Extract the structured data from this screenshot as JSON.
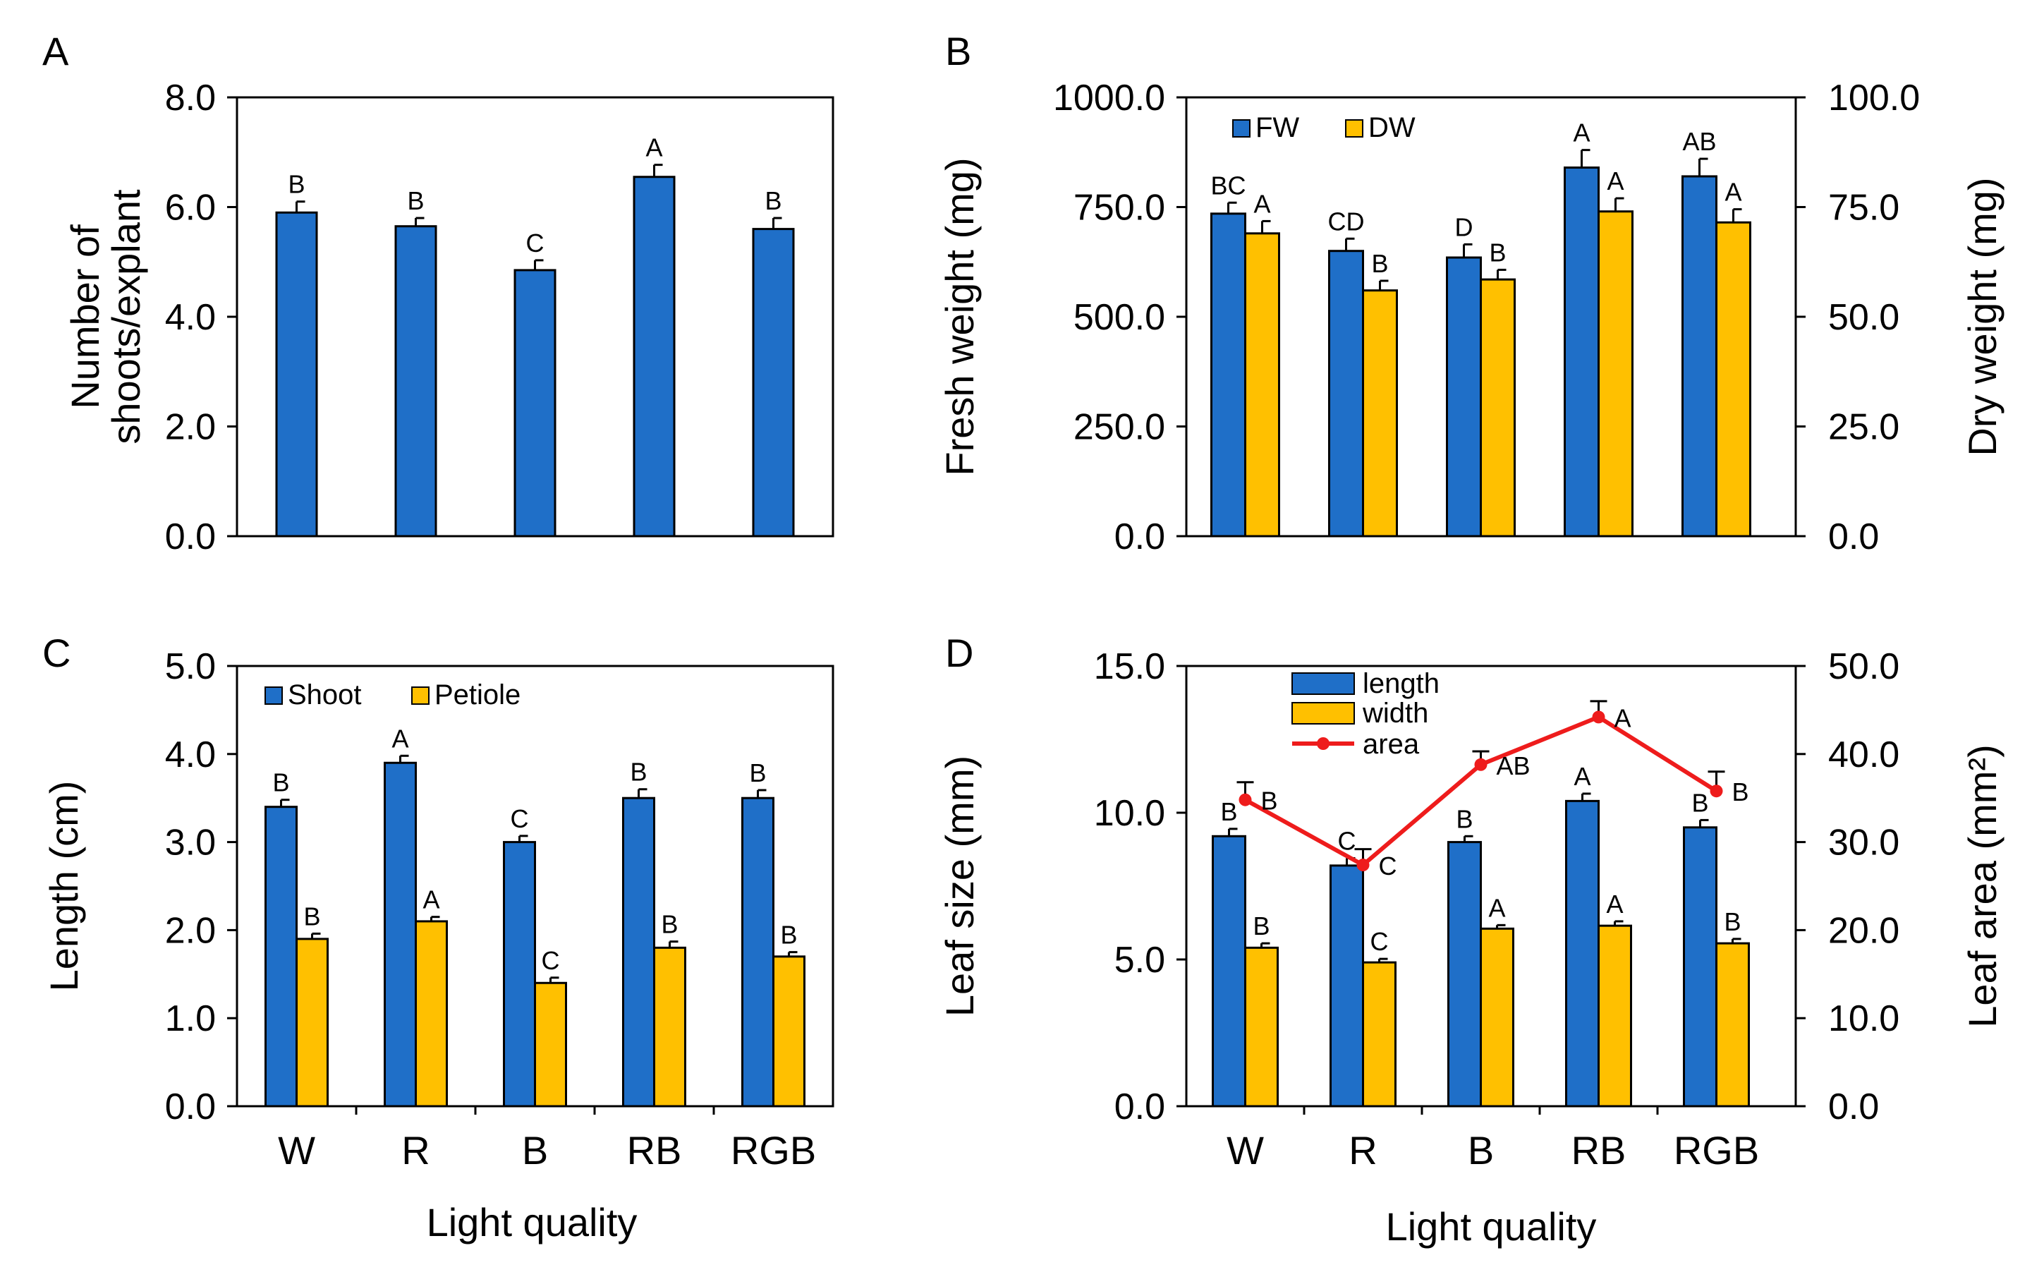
{
  "x_categories": [
    "W",
    "R",
    "B",
    "RB",
    "RGB"
  ],
  "x_axis_title": "Light quality",
  "colors": {
    "blue": "#1f6fc8",
    "yellow": "#ffc000",
    "red": "#ee1c1c"
  },
  "chart_data": [
    {
      "panel": "A",
      "type": "bar",
      "categories": [
        "W",
        "R",
        "B",
        "RB",
        "RGB"
      ],
      "ylabel_lines": [
        "Number of",
        "shoots/explant"
      ],
      "ylim": [
        0,
        8
      ],
      "yticks": [
        0,
        2,
        4,
        6,
        8
      ],
      "ytick_labels": [
        "0.0",
        "2.0",
        "4.0",
        "6.0",
        "8.0"
      ],
      "series": [
        {
          "name": "Shoots",
          "color": "#1f6fc8",
          "values": [
            5.9,
            5.65,
            4.85,
            6.55,
            5.6
          ],
          "errors": [
            0.2,
            0.15,
            0.18,
            0.22,
            0.2
          ],
          "letters": [
            "B",
            "B",
            "C",
            "A",
            "B"
          ]
        }
      ]
    },
    {
      "panel": "B",
      "type": "bar",
      "categories": [
        "W",
        "R",
        "B",
        "RB",
        "RGB"
      ],
      "ylabel": "Fresh weight (mg)",
      "ylabel_right": "Dry weight (mg)",
      "ylim": [
        0,
        1000
      ],
      "yticks": [
        0,
        250,
        500,
        750,
        1000
      ],
      "ytick_labels": [
        "0.0",
        "250.0",
        "500.0",
        "750.0",
        "1000.0"
      ],
      "ylim_right": [
        0,
        100
      ],
      "yticks_right": [
        0,
        25,
        50,
        75,
        100
      ],
      "ytick_labels_right": [
        "0.0",
        "25.0",
        "50.0",
        "75.0",
        "100.0"
      ],
      "legend": [
        "FW",
        "DW"
      ],
      "series": [
        {
          "name": "FW",
          "axis": "left",
          "color": "#1f6fc8",
          "values": [
            735,
            650,
            635,
            840,
            820
          ],
          "errors": [
            25,
            28,
            30,
            40,
            40
          ],
          "letters": [
            "BC",
            "CD",
            "D",
            "A",
            "AB"
          ]
        },
        {
          "name": "DW",
          "axis": "right",
          "color": "#ffc000",
          "values": [
            69,
            56,
            58.5,
            74,
            71.5
          ],
          "errors": [
            2.8,
            2.2,
            2.2,
            3.0,
            3.0
          ],
          "letters": [
            "A",
            "B",
            "B",
            "A",
            "A"
          ]
        }
      ]
    },
    {
      "panel": "C",
      "type": "bar",
      "categories": [
        "W",
        "R",
        "B",
        "RB",
        "RGB"
      ],
      "ylabel": "Length (cm)",
      "ylim": [
        0,
        5
      ],
      "yticks": [
        0,
        1,
        2,
        3,
        4,
        5
      ],
      "ytick_labels": [
        "0.0",
        "1.0",
        "2.0",
        "3.0",
        "4.0",
        "5.0"
      ],
      "legend": [
        "Shoot",
        "Petiole"
      ],
      "series": [
        {
          "name": "Shoot",
          "color": "#1f6fc8",
          "values": [
            3.4,
            3.9,
            3.0,
            3.5,
            3.5
          ],
          "errors": [
            0.08,
            0.08,
            0.07,
            0.1,
            0.09
          ],
          "letters": [
            "B",
            "A",
            "C",
            "B",
            "B"
          ]
        },
        {
          "name": "Petiole",
          "color": "#ffc000",
          "values": [
            1.9,
            2.1,
            1.4,
            1.8,
            1.7
          ],
          "errors": [
            0.06,
            0.05,
            0.06,
            0.07,
            0.05
          ],
          "letters": [
            "B",
            "A",
            "C",
            "B",
            "B"
          ]
        }
      ]
    },
    {
      "panel": "D",
      "type": "bar",
      "categories": [
        "W",
        "R",
        "B",
        "RB",
        "RGB"
      ],
      "ylabel": "Leaf size (mm)",
      "ylabel_right": "Leaf area (mm²)",
      "ylim": [
        0,
        15
      ],
      "yticks": [
        0,
        5,
        10,
        15
      ],
      "ytick_labels": [
        "0.0",
        "5.0",
        "10.0",
        "15.0"
      ],
      "ylim_right": [
        0,
        50
      ],
      "yticks_right": [
        0,
        10,
        20,
        30,
        40,
        50
      ],
      "ytick_labels_right": [
        "0.0",
        "10.0",
        "20.0",
        "30.0",
        "40.0",
        "50.0"
      ],
      "legend": [
        "length",
        "width",
        "area"
      ],
      "series": [
        {
          "name": "length",
          "axis": "left",
          "color": "#1f6fc8",
          "values": [
            9.2,
            8.2,
            9.0,
            10.4,
            9.5
          ],
          "errors": [
            0.25,
            0.25,
            0.2,
            0.25,
            0.25
          ],
          "letters": [
            "B",
            "C",
            "B",
            "A",
            "B"
          ]
        },
        {
          "name": "width",
          "axis": "left",
          "color": "#ffc000",
          "values": [
            5.4,
            4.9,
            6.05,
            6.15,
            5.55
          ],
          "errors": [
            0.15,
            0.12,
            0.12,
            0.15,
            0.15
          ],
          "letters": [
            "B",
            "C",
            "A",
            "A",
            "B"
          ]
        }
      ],
      "line_series": {
        "name": "area",
        "axis": "right",
        "color": "#ee1c1c",
        "values": [
          34.8,
          27.4,
          38.8,
          44.2,
          35.8
        ],
        "errors": [
          2.0,
          1.8,
          1.5,
          1.8,
          2.2
        ],
        "letters": [
          "B",
          "C",
          "AB",
          "A",
          "B"
        ]
      }
    }
  ],
  "panels": {
    "A": {
      "label": "A"
    },
    "B": {
      "label": "B"
    },
    "C": {
      "label": "C"
    },
    "D": {
      "label": "D"
    }
  }
}
